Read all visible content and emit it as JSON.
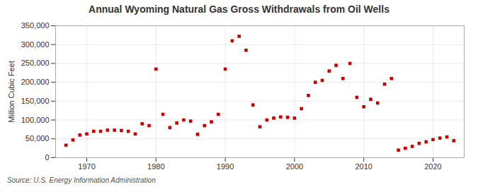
{
  "chart_data": {
    "type": "scatter",
    "title": "Annual Wyoming Natural Gas Gross Withdrawals from Oil Wells",
    "ylabel": "Million Cubic Feet",
    "source": "Source: U.S. Energy Information Administration",
    "x": [
      1967,
      1968,
      1969,
      1970,
      1971,
      1972,
      1973,
      1974,
      1975,
      1976,
      1977,
      1978,
      1979,
      1980,
      1981,
      1982,
      1983,
      1984,
      1985,
      1986,
      1987,
      1988,
      1989,
      1990,
      1991,
      1992,
      1993,
      1994,
      1995,
      1996,
      1997,
      1998,
      1999,
      2000,
      2001,
      2002,
      2003,
      2004,
      2005,
      2006,
      2007,
      2008,
      2009,
      2010,
      2011,
      2012,
      2013,
      2014,
      2015,
      2016,
      2017,
      2018,
      2019,
      2020,
      2021,
      2022,
      2023
    ],
    "values": [
      33000,
      47000,
      60000,
      63000,
      70000,
      70000,
      73000,
      73000,
      72000,
      70000,
      63000,
      90000,
      85000,
      235000,
      115000,
      80000,
      92000,
      100000,
      97000,
      62000,
      85000,
      95000,
      115000,
      235000,
      310000,
      322000,
      285000,
      140000,
      82000,
      100000,
      105000,
      108000,
      107000,
      105000,
      130000,
      165000,
      200000,
      205000,
      230000,
      245000,
      210000,
      250000,
      160000,
      135000,
      155000,
      145000,
      195000,
      210000,
      20000,
      25000,
      30000,
      38000,
      42000,
      48000,
      52000,
      55000,
      45000
    ],
    "color": "#cc0000",
    "marker": "square",
    "xlim": [
      1965.5,
      2024.5
    ],
    "xticks": [
      1970,
      1980,
      1990,
      2000,
      2010,
      2020
    ],
    "ylim": [
      0,
      350000
    ],
    "yticks": [
      0,
      {
        "value": 50000,
        "label": "50,000"
      },
      {
        "value": 100000,
        "label": "100,000"
      },
      {
        "value": 150000,
        "label": "150,000"
      },
      {
        "value": 200000,
        "label": "200,000"
      },
      {
        "value": 250000,
        "label": "250,000"
      },
      {
        "value": 300000,
        "label": "300,000"
      },
      {
        "value": 350000,
        "label": "350,000"
      }
    ],
    "grid": true
  }
}
